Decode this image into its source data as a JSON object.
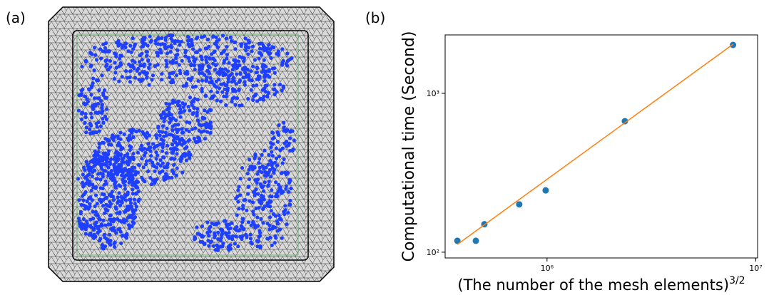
{
  "panels": {
    "a": "(a)",
    "b": "(b)"
  },
  "chart_data": {
    "type": "scatter",
    "log_x": true,
    "log_y": true,
    "xlabel": "(The number of the mesh elements)",
    "xlabel_exponent": "3/2",
    "ylabel": "Computational time (Second)",
    "xlim": [
      325000,
      10200000
    ],
    "ylim": [
      92,
      2333
    ],
    "xticks": [
      {
        "value": 1000000,
        "label": "10⁶"
      },
      {
        "value": 10000000,
        "label": "10⁷"
      }
    ],
    "yticks": [
      {
        "value": 100,
        "label": "10²"
      },
      {
        "value": 1000,
        "label": "10³"
      }
    ],
    "series": [
      {
        "mode": "markers",
        "color": "#1f77b4",
        "x": [
          372000,
          456000,
          501000,
          736000,
          985000,
          2360000,
          7780000
        ],
        "values": [
          118,
          118,
          150,
          200,
          245,
          668,
          2018
        ]
      },
      {
        "mode": "line",
        "color": "#ff7f0e",
        "x": [
          372000,
          7780000
        ],
        "values": [
          112,
          2037
        ]
      }
    ]
  }
}
